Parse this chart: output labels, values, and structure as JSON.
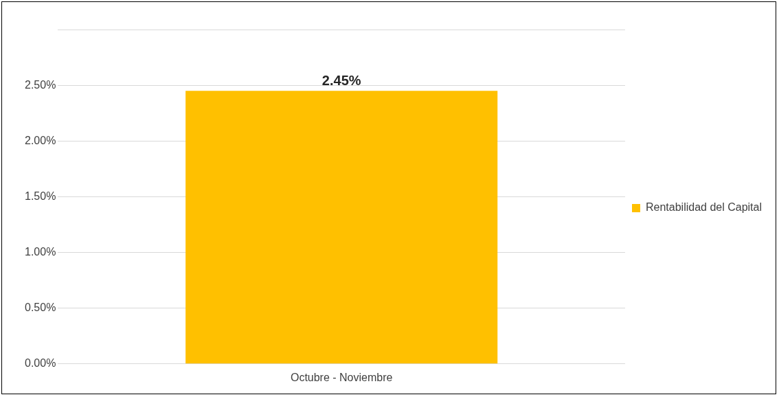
{
  "chart_data": {
    "type": "bar",
    "categories": [
      "Octubre - Noviembre"
    ],
    "series": [
      {
        "name": "Rentabilidad del Capital",
        "color": "#ffc000",
        "values": [
          2.45
        ],
        "value_labels": [
          "2.45%"
        ]
      }
    ],
    "ylim": [
      0,
      3
    ],
    "yticks": [
      {
        "value": 0,
        "label": "0.00%"
      },
      {
        "value": 0.5,
        "label": "0.50%"
      },
      {
        "value": 1,
        "label": "1.00%"
      },
      {
        "value": 1.5,
        "label": "1.50%"
      },
      {
        "value": 2,
        "label": "2.00%"
      },
      {
        "value": 2.5,
        "label": "2.50%"
      },
      {
        "value": 3,
        "label": null
      }
    ],
    "grid": "y",
    "legend": "right"
  }
}
